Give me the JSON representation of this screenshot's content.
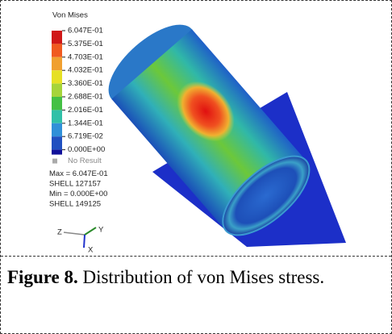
{
  "figure": {
    "legend": {
      "title": "Von Mises",
      "levels": [
        "6.047E-01",
        "5.375E-01",
        "4.703E-01",
        "4.032E-01",
        "3.360E-01",
        "2.688E-01",
        "2.016E-01",
        "1.344E-01",
        "6.719E-02",
        "0.000E+00"
      ],
      "no_result": "No Result",
      "info": [
        "Max = 6.047E-01",
        "SHELL 127157",
        "Min = 0.000E+00",
        "SHELL 149125"
      ]
    },
    "axes": {
      "z": "Z",
      "y": "Y",
      "x": "X"
    }
  },
  "caption": {
    "label": "Figure 8.",
    "text": "Distribution of von Mises stress."
  }
}
